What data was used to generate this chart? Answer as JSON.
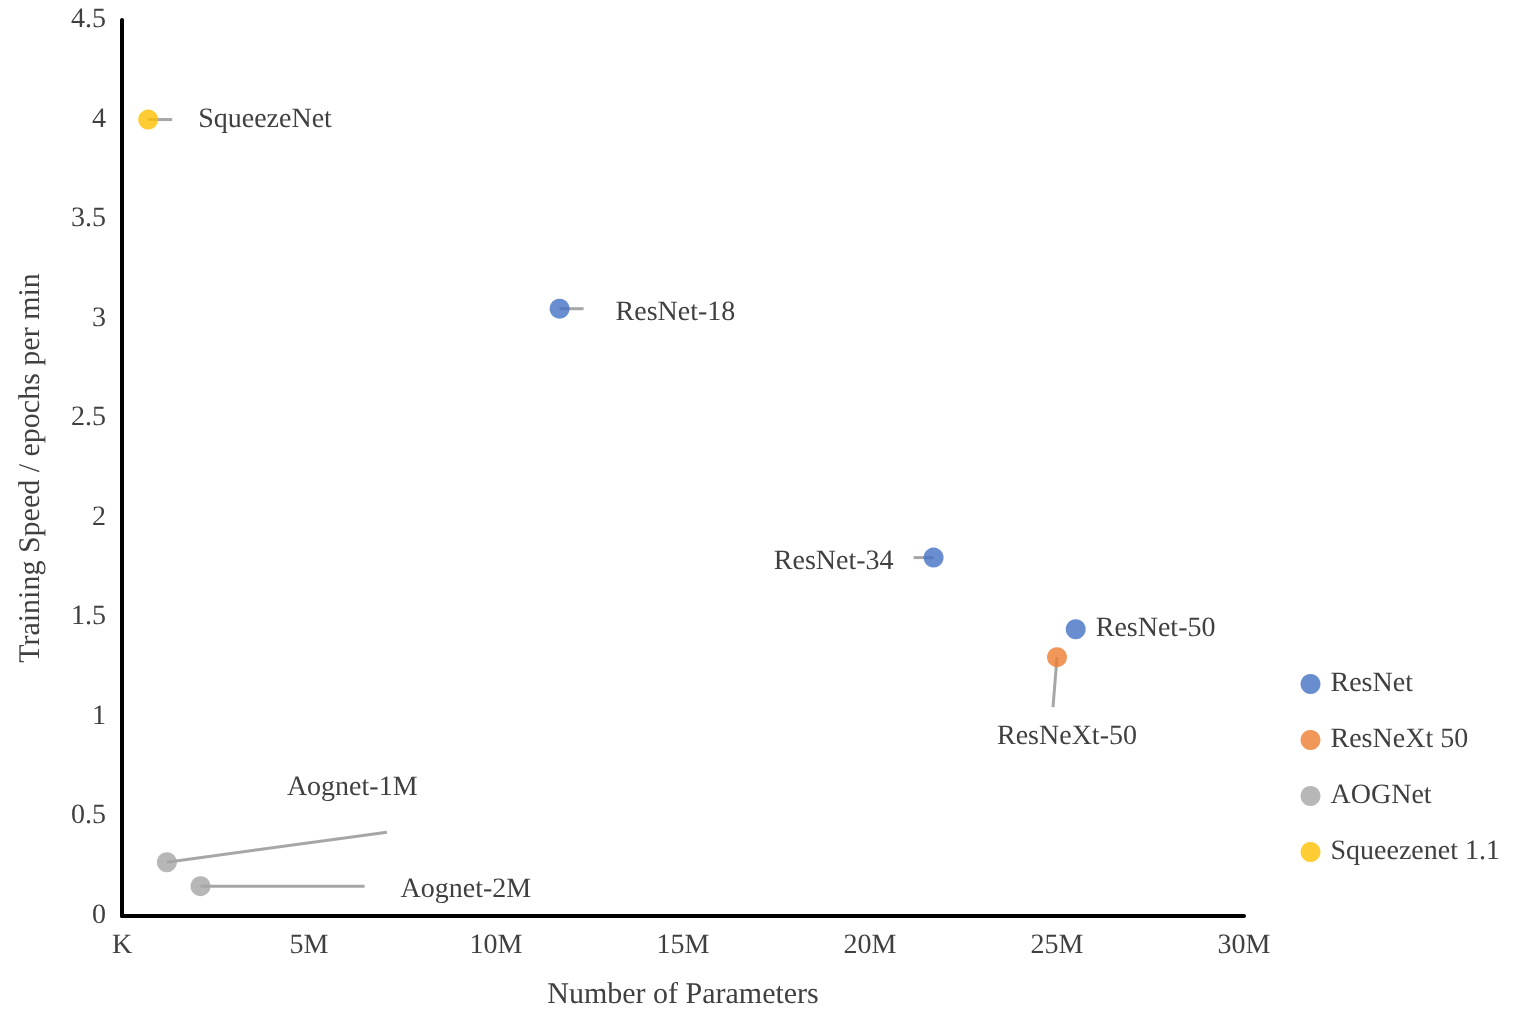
{
  "chart_data": {
    "type": "scatter",
    "xlabel": "Number of Parameters",
    "ylabel": "Training Speed / epochs per min",
    "series": [
      {
        "name": "ResNet",
        "color": "#4472c4",
        "x": [
          11.7,
          21.7,
          25.5
        ],
        "values": [
          3.05,
          1.8,
          1.44
        ]
      },
      {
        "name": "ResNeXt 50",
        "color": "#ed7d31",
        "x": [
          25.0
        ],
        "values": [
          1.3
        ]
      },
      {
        "name": "AOGNet",
        "color": "#a5a5a5",
        "x": [
          1.2,
          2.1
        ],
        "values": [
          0.27,
          0.15
        ]
      },
      {
        "name": "Squeezenet 1.1",
        "color": "#ffc000",
        "x": [
          0.7
        ],
        "values": [
          4.0
        ]
      }
    ],
    "annotations": [
      {
        "text": "SqueezeNet",
        "x": 0.7,
        "y": 4.0
      },
      {
        "text": "ResNet-18",
        "x": 11.7,
        "y": 3.05
      },
      {
        "text": "ResNet-34",
        "x": 21.7,
        "y": 1.8
      },
      {
        "text": "ResNet-50",
        "x": 25.5,
        "y": 1.44
      },
      {
        "text": "ResNeXt-50",
        "x": 25.0,
        "y": 1.3
      },
      {
        "text": "Aognet-1M",
        "x": 1.2,
        "y": 0.27
      },
      {
        "text": "Aognet-2M",
        "x": 2.1,
        "y": 0.15
      }
    ],
    "xlim": [
      0,
      30
    ],
    "xticks": [
      {
        "value": 0,
        "label": "K"
      },
      {
        "value": 5,
        "label": "5M"
      },
      {
        "value": 10,
        "label": "10M"
      },
      {
        "value": 15,
        "label": "15M"
      },
      {
        "value": 20,
        "label": "20M"
      },
      {
        "value": 25,
        "label": "25M"
      },
      {
        "value": 30,
        "label": "30M"
      }
    ],
    "ylim": [
      0,
      4.5
    ],
    "yticks": [
      0,
      0.5,
      1,
      1.5,
      2,
      2.5,
      3,
      3.5,
      4,
      4.5
    ],
    "grid": false,
    "legend": "right",
    "marker": "circle"
  }
}
